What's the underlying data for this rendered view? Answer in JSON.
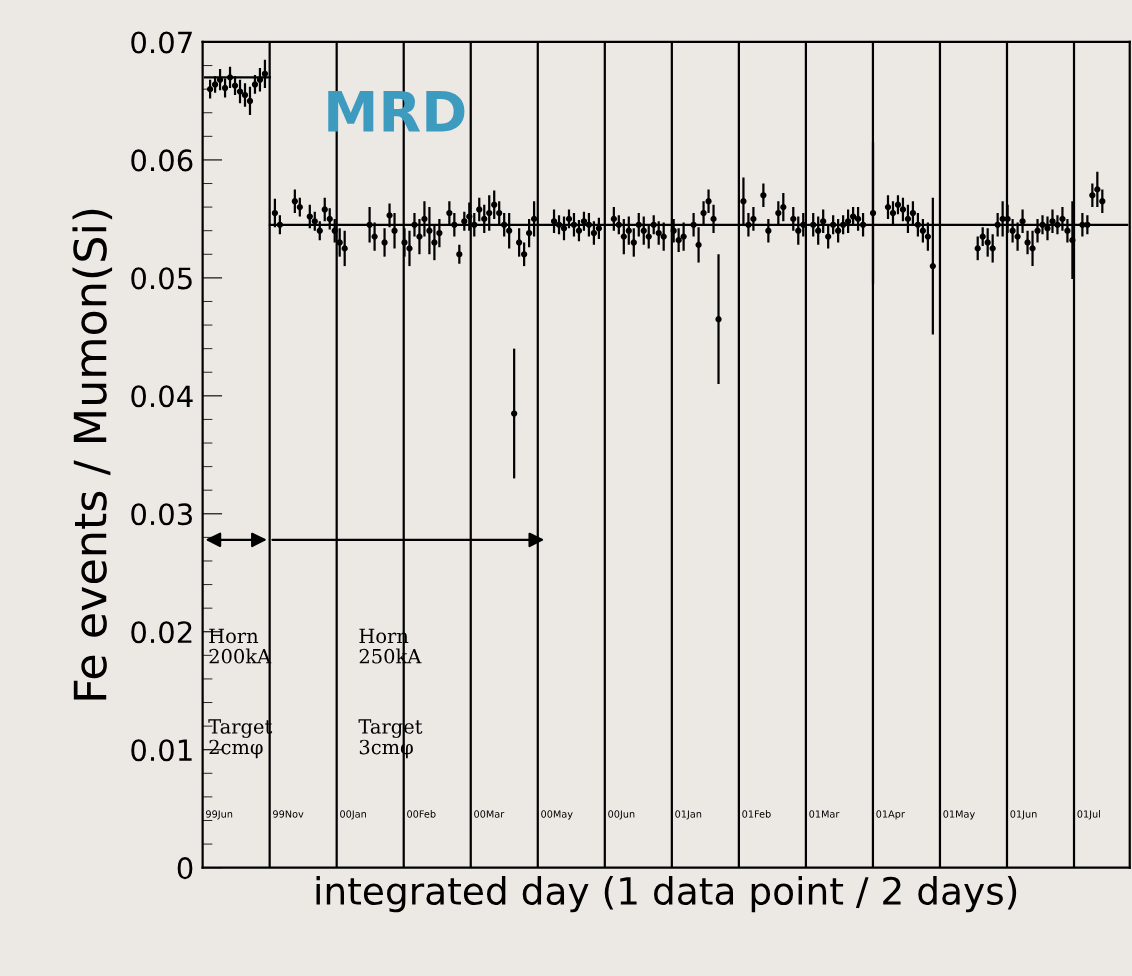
{
  "chart_data": {
    "type": "scatter",
    "title": "MRD",
    "xlabel": "integrated day (1 data point / 2 days)",
    "ylabel": "Fe events / Mumon(Si)",
    "categories": [
      null,
      null,
      null,
      null,
      null,
      null,
      null,
      null,
      null,
      null,
      null,
      null,
      null,
      null,
      null,
      null,
      null,
      null,
      null,
      null,
      null,
      null,
      null,
      null,
      null,
      null,
      null,
      null,
      null,
      null,
      null,
      null,
      null,
      null,
      null,
      null,
      null,
      null,
      null,
      null,
      null,
      null,
      null,
      null,
      null,
      null,
      null,
      null,
      null,
      null,
      null,
      null,
      null,
      null,
      null,
      null,
      null,
      null,
      null,
      null,
      null,
      null,
      null,
      null,
      null,
      null,
      null,
      null,
      null,
      null,
      null,
      null,
      null,
      null,
      null,
      null,
      null,
      null,
      null,
      null,
      null,
      null,
      null,
      null,
      null,
      null,
      null,
      null,
      null,
      null,
      null,
      null,
      null,
      null,
      null,
      null,
      null,
      null,
      null,
      null,
      null,
      null,
      null,
      null,
      null,
      null,
      null,
      null,
      null,
      null,
      null,
      null,
      null,
      null,
      null,
      null,
      null,
      null,
      null,
      null,
      null,
      null,
      null,
      null,
      null,
      null,
      null,
      null,
      null,
      null,
      null,
      null,
      null,
      null,
      null,
      null,
      null,
      null,
      null,
      null,
      null,
      null,
      null,
      null,
      null,
      null,
      null,
      null,
      null,
      null,
      null,
      null,
      null,
      null,
      null,
      null,
      null,
      null,
      null,
      null,
      null,
      null,
      null,
      null,
      null,
      null,
      null,
      null,
      null,
      null,
      null,
      null,
      null,
      null,
      null,
      null,
      null,
      null,
      null,
      null,
      null,
      null,
      null,
      null,
      null,
      null
    ],
    "ylim": [
      0,
      0.07
    ],
    "yticks": [
      0,
      0.01,
      0.02,
      0.03,
      0.04,
      0.05,
      0.06,
      0.07
    ],
    "tick_labels": "y",
    "grid": false,
    "legend": false,
    "annotations": [
      "Horn\n200kA",
      "Target\n2cmφ",
      "Horn\n250kA",
      "Target\n3cmφ",
      "99Jun",
      "99Nov",
      "00Jan",
      "00Feb",
      "00Mar",
      "00May",
      "00Jun",
      "01Jan",
      "01Feb",
      "01Mar",
      "01Apr",
      "01May",
      "01Jun",
      "01Jul"
    ],
    "series": [
      {
        "color": "#000000",
        "marker": "circle",
        "values": [
          null,
          0.066,
          0.0664,
          0.0668,
          0.0661,
          0.067,
          0.0663,
          0.0658,
          0.0655,
          0.065,
          0.0664,
          0.0668,
          0.0673,
          null,
          0.0555,
          0.0545,
          null,
          null,
          0.0565,
          0.056,
          null,
          0.0552,
          0.0548,
          0.054,
          0.0558,
          0.055,
          0.054,
          0.053,
          0.0525,
          null,
          null,
          null,
          null,
          0.0545,
          0.0535,
          null,
          0.053,
          0.0553,
          0.054,
          null,
          0.053,
          0.0525,
          0.0545,
          0.0535,
          0.055,
          0.054,
          0.053,
          0.0538,
          null,
          0.0555,
          0.0545,
          0.052,
          0.0548,
          0.0552,
          0.0545,
          0.0558,
          0.055,
          0.0555,
          0.0562,
          0.0555,
          0.0545,
          0.054,
          0.0385,
          0.053,
          0.052,
          0.0538,
          0.055,
          null,
          null,
          null,
          0.0548,
          0.0545,
          0.0542,
          0.055,
          0.0545,
          0.054,
          0.0548,
          0.0545,
          0.0538,
          0.0542,
          null,
          null,
          0.055,
          0.0545,
          0.0535,
          0.054,
          0.053,
          0.0545,
          0.054,
          0.0535,
          0.0545,
          0.0538,
          0.0535,
          null,
          0.054,
          0.0532,
          0.0535,
          null,
          0.0545,
          0.0528,
          0.0555,
          0.0565,
          0.055,
          0.0465,
          null,
          null,
          null,
          null,
          0.0565,
          0.0545,
          0.055,
          null,
          0.057,
          0.054,
          null,
          0.0555,
          0.056,
          null,
          0.055,
          0.054,
          0.0545,
          null,
          0.0545,
          0.054,
          0.0548,
          0.0535,
          0.0545,
          0.054,
          0.0545,
          0.0548,
          0.0552,
          0.055,
          0.0545,
          null,
          0.0555,
          null,
          null,
          0.056,
          0.0555,
          0.0562,
          0.0558,
          0.055,
          0.0555,
          0.0545,
          0.054,
          0.0535,
          0.051,
          null,
          null,
          null,
          null,
          null,
          null,
          null,
          null,
          0.0525,
          0.0535,
          0.053,
          0.0525,
          0.0545,
          0.055,
          0.055,
          0.054,
          0.0535,
          0.0548,
          0.053,
          0.0525,
          0.054,
          0.0545,
          0.0542,
          0.0548,
          0.0545,
          0.055,
          0.054,
          0.0532,
          null,
          0.0545,
          0.0545,
          0.057,
          0.0575,
          0.0565,
          null,
          null,
          null,
          null,
          null
        ],
        "errors": [
          null,
          0.0008,
          0.0007,
          0.0009,
          0.0008,
          0.0009,
          0.0008,
          0.001,
          0.001,
          0.0012,
          0.0008,
          0.001,
          0.0012,
          null,
          0.0012,
          0.0008,
          null,
          null,
          0.001,
          0.0008,
          null,
          0.001,
          0.0008,
          0.0008,
          0.001,
          0.0009,
          0.001,
          0.0012,
          0.0015,
          null,
          null,
          null,
          null,
          0.0015,
          0.0012,
          null,
          0.0012,
          0.001,
          0.0015,
          null,
          0.0012,
          0.0015,
          0.001,
          0.0015,
          0.0015,
          0.002,
          0.0015,
          0.0012,
          null,
          0.001,
          0.001,
          0.0008,
          0.0008,
          0.0012,
          0.001,
          0.001,
          0.0012,
          0.0015,
          0.0012,
          0.001,
          0.001,
          0.0015,
          0.0055,
          0.0012,
          0.001,
          0.0012,
          0.0015,
          null,
          null,
          null,
          0.001,
          0.0008,
          0.001,
          0.0008,
          0.001,
          0.0009,
          0.0008,
          0.001,
          0.001,
          0.0009,
          null,
          null,
          0.001,
          0.0008,
          0.0015,
          0.0012,
          0.0012,
          0.001,
          0.0012,
          0.001,
          0.0008,
          0.001,
          0.0012,
          null,
          0.001,
          0.001,
          0.0012,
          null,
          0.001,
          0.0015,
          0.001,
          0.001,
          0.0012,
          0.0055,
          null,
          null,
          null,
          null,
          0.002,
          0.001,
          0.001,
          null,
          0.001,
          0.001,
          null,
          0.001,
          0.0012,
          null,
          0.001,
          0.0012,
          0.001,
          null,
          0.001,
          0.0012,
          0.001,
          0.001,
          0.0008,
          0.001,
          0.0008,
          0.001,
          0.0008,
          0.001,
          0.001,
          null,
          0.006,
          null,
          null,
          0.001,
          0.001,
          0.0008,
          0.001,
          0.0012,
          0.001,
          0.001,
          0.001,
          0.0012,
          0.0058,
          null,
          null,
          null,
          null,
          null,
          null,
          null,
          null,
          0.001,
          0.0008,
          0.0012,
          0.0012,
          0.001,
          0.0015,
          0.0012,
          0.001,
          0.0012,
          0.001,
          0.001,
          0.0015,
          0.001,
          0.0008,
          0.001,
          0.001,
          0.0008,
          0.001,
          0.001,
          0.0033,
          null,
          0.001,
          0.0008,
          0.001,
          0.0015,
          0.001,
          null,
          null,
          null,
          null,
          null
        ]
      },
      {
        "type": "line",
        "color": "#000000",
        "marker": "none",
        "values": [
          0.067,
          0.067,
          0.067,
          0.067,
          0.067,
          0.067,
          0.067,
          0.067,
          0.067,
          0.067,
          0.067,
          0.067,
          0.067,
          0.067,
          null,
          null,
          null,
          null,
          null,
          null,
          null,
          null,
          null,
          null,
          null,
          null,
          null,
          null,
          null,
          null,
          null,
          null,
          null,
          null,
          null,
          null,
          null,
          null,
          null,
          null,
          null,
          null,
          null,
          null,
          null,
          null,
          null,
          null,
          null,
          null,
          null,
          null,
          null,
          null,
          null,
          null,
          null,
          null,
          null,
          null,
          null,
          null,
          null,
          null,
          null,
          null,
          null,
          null,
          null,
          null,
          null,
          null,
          null,
          null,
          null,
          null,
          null,
          null,
          null,
          null,
          null,
          null,
          null,
          null,
          null,
          null,
          null,
          null,
          null,
          null,
          null,
          null,
          null,
          null,
          null,
          null,
          null,
          null,
          null,
          null,
          null,
          null,
          null,
          null,
          null,
          null,
          null,
          null,
          null,
          null,
          null,
          null,
          null,
          null,
          null,
          null,
          null,
          null,
          null,
          null,
          null,
          null,
          null,
          null,
          null,
          null,
          null,
          null,
          null,
          null,
          null,
          null,
          null,
          null,
          null,
          null,
          null,
          null,
          null,
          null,
          null,
          null,
          null,
          null,
          null,
          null,
          null,
          null,
          null,
          null,
          null,
          null,
          null,
          null,
          null,
          null,
          null,
          null,
          null,
          null,
          null,
          null,
          null,
          null,
          null,
          null,
          null,
          null,
          null,
          null,
          null,
          null,
          null,
          null,
          null,
          null,
          null,
          null,
          null,
          null,
          null,
          null,
          null,
          null,
          null,
          null
        ]
      },
      {
        "type": "line",
        "color": "#000000",
        "marker": "none",
        "values": [
          null,
          null,
          null,
          null,
          null,
          null,
          null,
          null,
          null,
          null,
          null,
          null,
          null,
          0.0545,
          0.0545,
          0.0545,
          0.0545,
          0.0545,
          0.0545,
          0.0545,
          0.0545,
          0.0545,
          0.0545,
          0.0545,
          0.0545,
          0.0545,
          0.0545,
          0.0545,
          0.0545,
          0.0545,
          0.0545,
          0.0545,
          0.0545,
          0.0545,
          0.0545,
          0.0545,
          0.0545,
          0.0545,
          0.0545,
          0.0545,
          0.0545,
          0.0545,
          0.0545,
          0.0545,
          0.0545,
          0.0545,
          0.0545,
          0.0545,
          0.0545,
          0.0545,
          0.0545,
          0.0545,
          0.0545,
          0.0545,
          0.0545,
          0.0545,
          0.0545,
          0.0545,
          0.0545,
          0.0545,
          0.0545,
          0.0545,
          0.0545,
          0.0545,
          0.0545,
          0.0545,
          0.0545,
          0.0545,
          0.0545,
          0.0545,
          0.0545,
          0.0545,
          0.0545,
          0.0545,
          0.0545,
          0.0545,
          0.0545,
          0.0545,
          0.0545,
          0.0545,
          0.0545,
          0.0545,
          0.0545,
          0.0545,
          0.0545,
          0.0545,
          0.0545,
          0.0545,
          0.0545,
          0.0545,
          0.0545,
          0.0545,
          0.0545,
          0.0545,
          0.0545,
          0.0545,
          0.0545,
          0.0545,
          0.0545,
          0.0545,
          0.0545,
          0.0545,
          0.0545,
          0.0545,
          0.0545,
          0.0545,
          0.0545,
          0.0545,
          0.0545,
          0.0545,
          0.0545,
          0.0545,
          0.0545,
          0.0545,
          0.0545,
          0.0545,
          0.0545,
          0.0545,
          0.0545,
          0.0545,
          0.0545,
          0.0545,
          0.0545,
          0.0545,
          0.0545,
          0.0545,
          0.0545,
          0.0545,
          0.0545,
          0.0545,
          0.0545,
          0.0545,
          0.0545,
          0.0545,
          0.0545,
          0.0545,
          0.0545,
          0.0545,
          0.0545,
          0.0545,
          0.0545,
          0.0545,
          0.0545,
          0.0545,
          0.0545,
          0.0545,
          0.0545,
          0.0545,
          0.0545,
          0.0545,
          0.0545,
          0.0545,
          0.0545,
          0.0545,
          0.0545,
          0.0545,
          0.0545,
          0.0545,
          0.0545,
          0.0545,
          0.0545,
          0.0545,
          0.0545,
          0.0545,
          0.0545,
          0.0545,
          0.0545,
          0.0545,
          0.0545,
          0.0545,
          0.0545,
          0.0545,
          0.0545,
          0.0545,
          0.0545,
          0.0545,
          0.0545,
          0.0545,
          0.0545,
          0.0545,
          0.0545,
          0.0545,
          0.0545,
          0.0545,
          0.0545,
          0.0545
        ]
      }
    ]
  }
}
